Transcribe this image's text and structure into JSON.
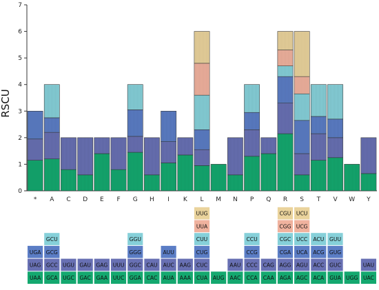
{
  "chart_data": {
    "type": "bar",
    "stacked": true,
    "ylabel": "RSCU",
    "ylim": [
      0,
      7
    ],
    "yticks": [
      0,
      1,
      2,
      3,
      4,
      5,
      6,
      7
    ],
    "grid": false,
    "colors": {
      "level1": "#14a86f",
      "level2": "#6870b3",
      "level3": "#5b7dc5",
      "level4": "#86d0d9",
      "level5": "#f0b29e",
      "level6": "#ead39c"
    },
    "categories": [
      {
        "label": "*",
        "stack": [
          1.15,
          0.8,
          1.05
        ],
        "codons": [
          "UAA",
          "UAG",
          "UGA"
        ]
      },
      {
        "label": "A",
        "stack": [
          1.2,
          1.0,
          0.55,
          1.25
        ],
        "codons": [
          "GCA",
          "GCC",
          "GCG",
          "GCU"
        ]
      },
      {
        "label": "C",
        "stack": [
          0.8,
          1.2
        ],
        "codons": [
          "UGC",
          "UGU"
        ]
      },
      {
        "label": "D",
        "stack": [
          0.6,
          1.4
        ],
        "codons": [
          "GAC",
          "GAU"
        ]
      },
      {
        "label": "E",
        "stack": [
          1.4,
          0.6
        ],
        "codons": [
          "GAA",
          "GAG"
        ]
      },
      {
        "label": "F",
        "stack": [
          0.8,
          1.2
        ],
        "codons": [
          "UUC",
          "UUU"
        ]
      },
      {
        "label": "G",
        "stack": [
          1.45,
          0.6,
          1.0,
          0.95
        ],
        "codons": [
          "GGA",
          "GGC",
          "GGG",
          "GGU"
        ]
      },
      {
        "label": "H",
        "stack": [
          0.6,
          1.4
        ],
        "codons": [
          "CAC",
          "CAU"
        ]
      },
      {
        "label": "I",
        "stack": [
          1.05,
          0.8,
          1.15
        ],
        "codons": [
          "AUA",
          "AUC",
          "AUU"
        ]
      },
      {
        "label": "K",
        "stack": [
          1.35,
          0.65
        ],
        "codons": [
          "AAA",
          "AAG"
        ]
      },
      {
        "label": "L",
        "stack": [
          0.95,
          0.6,
          0.75,
          1.3,
          1.2,
          1.2
        ],
        "codons": [
          "CUA",
          "CUC",
          "CUG",
          "CUU",
          "UUA",
          "UUG"
        ]
      },
      {
        "label": "M",
        "stack": [
          1.0
        ],
        "codons": [
          "AUG"
        ]
      },
      {
        "label": "N",
        "stack": [
          0.6,
          1.4
        ],
        "codons": [
          "AAC",
          "AAU"
        ]
      },
      {
        "label": "P",
        "stack": [
          1.3,
          1.0,
          0.65,
          1.05
        ],
        "codons": [
          "CCA",
          "CCC",
          "CCG",
          "CCU"
        ]
      },
      {
        "label": "Q",
        "stack": [
          1.4,
          0.6
        ],
        "codons": [
          "CAA",
          "CAG"
        ]
      },
      {
        "label": "R",
        "stack": [
          2.15,
          1.15,
          1.0,
          0.4,
          0.6,
          0.7
        ],
        "codons": [
          "AGA",
          "AGG",
          "CGA",
          "CGC",
          "CGG",
          "CGU"
        ]
      },
      {
        "label": "S",
        "stack": [
          0.6,
          0.8,
          1.25,
          1.0,
          0.65,
          1.7
        ],
        "codons": [
          "AGC",
          "AGU",
          "UCA",
          "UCC",
          "UCG",
          "UCU"
        ]
      },
      {
        "label": "T",
        "stack": [
          1.15,
          1.0,
          0.65,
          1.2
        ],
        "codons": [
          "ACA",
          "ACC",
          "ACG",
          "ACU"
        ]
      },
      {
        "label": "V",
        "stack": [
          1.25,
          0.75,
          0.7,
          1.3
        ],
        "codons": [
          "GUA",
          "GUC",
          "GUG",
          "GUU"
        ]
      },
      {
        "label": "W",
        "stack": [
          1.0
        ],
        "codons": [
          "UGG"
        ]
      },
      {
        "label": "Y",
        "stack": [
          0.65,
          1.35
        ],
        "codons": [
          "UAC",
          "UAU"
        ]
      }
    ]
  }
}
